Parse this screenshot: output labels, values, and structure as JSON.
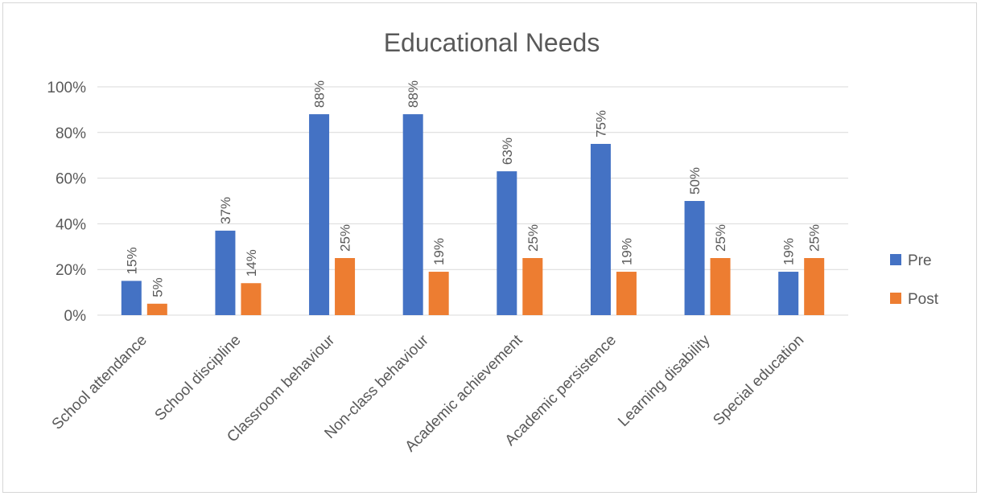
{
  "chart_data": {
    "type": "bar",
    "title": "Educational Needs",
    "xlabel": "",
    "ylabel": "",
    "categories": [
      "School attendance",
      "School discipline",
      "Classroom behaviour",
      "Non-class behaviour",
      "Academic achievement",
      "Academic persistence",
      "Learning disability",
      "Special education"
    ],
    "series": [
      {
        "name": "Pre",
        "color": "#4472C4",
        "values": [
          15,
          37,
          88,
          88,
          63,
          75,
          50,
          19
        ],
        "labels": [
          "15%",
          "37%",
          "88%",
          "88%",
          "63%",
          "75%",
          "50%",
          "19%"
        ]
      },
      {
        "name": "Post",
        "color": "#ED7D31",
        "values": [
          5,
          14,
          25,
          19,
          25,
          19,
          25,
          25
        ],
        "labels": [
          "5%",
          "14%",
          "25%",
          "19%",
          "25%",
          "19%",
          "25%",
          "25%"
        ]
      }
    ],
    "ylim": [
      0,
      100
    ],
    "yticks": [
      0,
      20,
      40,
      60,
      80,
      100
    ],
    "ytick_labels": [
      "0%",
      "20%",
      "40%",
      "60%",
      "80%",
      "100%"
    ],
    "grid": true,
    "legend": "right",
    "gridline_color": "#d9d9d9",
    "text_color": "#595959"
  }
}
